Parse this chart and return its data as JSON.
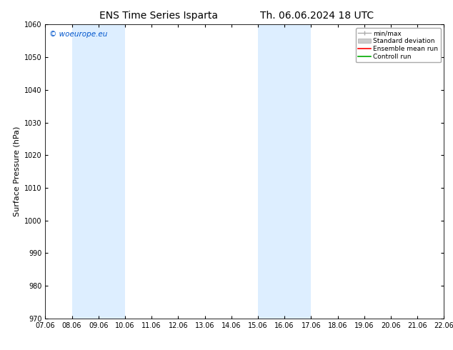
{
  "title_left": "ENS Time Series Isparta",
  "title_right": "Th. 06.06.2024 18 UTC",
  "ylabel": "Surface Pressure (hPa)",
  "ylim": [
    970,
    1060
  ],
  "yticks": [
    970,
    980,
    990,
    1000,
    1010,
    1020,
    1030,
    1040,
    1050,
    1060
  ],
  "xlim_start": 7.06,
  "xlim_end": 22.06,
  "xticks": [
    7.06,
    8.06,
    9.06,
    10.06,
    11.06,
    12.06,
    13.06,
    14.06,
    15.06,
    16.06,
    17.06,
    18.06,
    19.06,
    20.06,
    21.06,
    22.06
  ],
  "xtick_labels": [
    "07.06",
    "08.06",
    "09.06",
    "10.06",
    "11.06",
    "12.06",
    "13.06",
    "14.06",
    "15.06",
    "16.06",
    "17.06",
    "18.06",
    "19.06",
    "20.06",
    "21.06",
    "22.06"
  ],
  "shaded_bands": [
    {
      "xmin": 8.06,
      "xmax": 10.06
    },
    {
      "xmin": 15.06,
      "xmax": 17.06
    },
    {
      "xmin": 22.06,
      "xmax": 22.56
    }
  ],
  "band_color": "#ddeeff",
  "background_color": "#ffffff",
  "watermark": "© woeurope.eu",
  "watermark_color": "#0055cc",
  "legend_labels": [
    "min/max",
    "Standard deviation",
    "Ensemble mean run",
    "Controll run"
  ],
  "legend_colors_line": [
    "#aaaaaa",
    "#aaaaaa",
    "#ff0000",
    "#00aa00"
  ],
  "title_fontsize": 10,
  "axis_label_fontsize": 8,
  "tick_fontsize": 7,
  "watermark_fontsize": 7.5,
  "legend_fontsize": 6.5,
  "fig_width": 6.34,
  "fig_height": 4.9,
  "dpi": 100
}
